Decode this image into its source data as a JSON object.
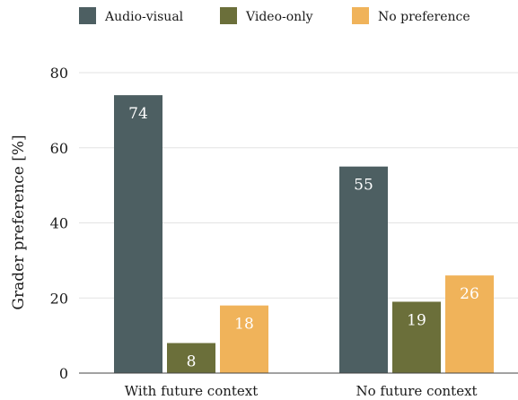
{
  "chart_data": {
    "type": "bar",
    "title": "",
    "xlabel": "",
    "ylabel": "Grader preference [%]",
    "categories": [
      "With future context",
      "No future context"
    ],
    "series": [
      {
        "name": "Audio-visual",
        "color": "#4d5f62",
        "values": [
          74,
          55
        ]
      },
      {
        "name": "Video-only",
        "color": "#6b6f3a",
        "values": [
          8,
          19
        ]
      },
      {
        "name": "No preference",
        "color": "#f0b35a",
        "values": [
          18,
          26
        ]
      }
    ],
    "ylim": [
      0,
      80
    ],
    "yticks": [
      0,
      20,
      40,
      60,
      80
    ],
    "grid": true,
    "legend_position": "top"
  }
}
